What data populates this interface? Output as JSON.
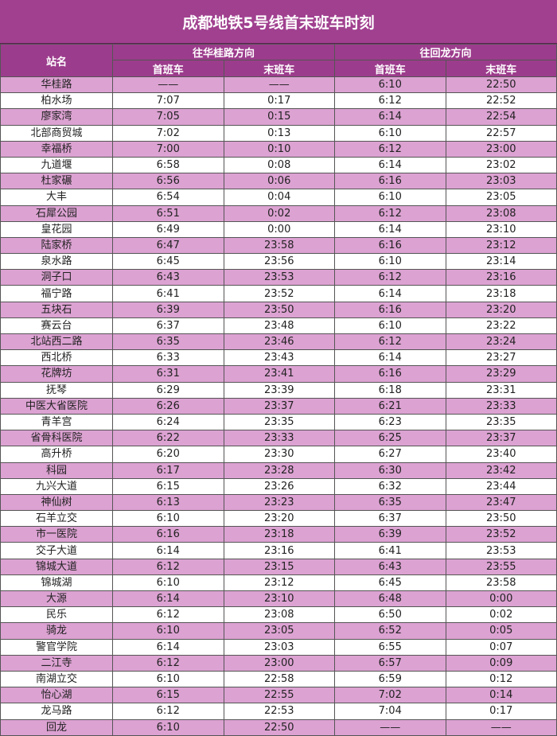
{
  "title": "成都地铁5号线首末班车时刻",
  "headers": {
    "station": "站名",
    "dir1": "往华桂路方向",
    "dir2": "往回龙方向",
    "first": "首班车",
    "last": "末班车"
  },
  "colors": {
    "title_bg": "#a0408f",
    "header_bg": "#9c3c8c",
    "row_pink": "#dca2d2",
    "row_white": "#ffffff"
  },
  "rows": [
    [
      "华桂路",
      "——",
      "——",
      "6:10",
      "22:50"
    ],
    [
      "柏水场",
      "7:07",
      "0:17",
      "6:12",
      "22:52"
    ],
    [
      "廖家湾",
      "7:05",
      "0:15",
      "6:14",
      "22:54"
    ],
    [
      "北部商贸城",
      "7:02",
      "0:13",
      "6:10",
      "22:57"
    ],
    [
      "幸福桥",
      "7:00",
      "0:10",
      "6:12",
      "23:00"
    ],
    [
      "九道堰",
      "6:58",
      "0:08",
      "6:14",
      "23:02"
    ],
    [
      "杜家碾",
      "6:56",
      "0:06",
      "6:16",
      "23:03"
    ],
    [
      "大丰",
      "6:54",
      "0:04",
      "6:10",
      "23:05"
    ],
    [
      "石犀公园",
      "6:51",
      "0:02",
      "6:12",
      "23:08"
    ],
    [
      "皇花园",
      "6:49",
      "0:00",
      "6:14",
      "23:10"
    ],
    [
      "陆家桥",
      "6:47",
      "23:58",
      "6:16",
      "23:12"
    ],
    [
      "泉水路",
      "6:45",
      "23:56",
      "6:10",
      "23:14"
    ],
    [
      "洞子口",
      "6:43",
      "23:53",
      "6:12",
      "23:16"
    ],
    [
      "福宁路",
      "6:41",
      "23:52",
      "6:14",
      "23:18"
    ],
    [
      "五块石",
      "6:39",
      "23:50",
      "6:16",
      "23:20"
    ],
    [
      "赛云台",
      "6:37",
      "23:48",
      "6:10",
      "23:22"
    ],
    [
      "北站西二路",
      "6:35",
      "23:46",
      "6:12",
      "23:24"
    ],
    [
      "西北桥",
      "6:33",
      "23:43",
      "6:14",
      "23:27"
    ],
    [
      "花牌坊",
      "6:31",
      "23:41",
      "6:16",
      "23:29"
    ],
    [
      "抚琴",
      "6:29",
      "23:39",
      "6:18",
      "23:31"
    ],
    [
      "中医大省医院",
      "6:26",
      "23:37",
      "6:21",
      "23:33"
    ],
    [
      "青羊宫",
      "6:24",
      "23:35",
      "6:23",
      "23:35"
    ],
    [
      "省骨科医院",
      "6:22",
      "23:33",
      "6:25",
      "23:37"
    ],
    [
      "高升桥",
      "6:20",
      "23:30",
      "6:27",
      "23:40"
    ],
    [
      "科园",
      "6:17",
      "23:28",
      "6:30",
      "23:42"
    ],
    [
      "九兴大道",
      "6:15",
      "23:26",
      "6:32",
      "23:44"
    ],
    [
      "神仙树",
      "6:13",
      "23:23",
      "6:35",
      "23:47"
    ],
    [
      "石羊立交",
      "6:10",
      "23:20",
      "6:37",
      "23:50"
    ],
    [
      "市一医院",
      "6:16",
      "23:18",
      "6:39",
      "23:52"
    ],
    [
      "交子大道",
      "6:14",
      "23:16",
      "6:41",
      "23:53"
    ],
    [
      "锦城大道",
      "6:12",
      "23:15",
      "6:43",
      "23:55"
    ],
    [
      "锦城湖",
      "6:10",
      "23:12",
      "6:45",
      "23:58"
    ],
    [
      "大源",
      "6:14",
      "23:10",
      "6:48",
      "0:00"
    ],
    [
      "民乐",
      "6:12",
      "23:08",
      "6:50",
      "0:02"
    ],
    [
      "骑龙",
      "6:10",
      "23:05",
      "6:52",
      "0:05"
    ],
    [
      "警官学院",
      "6:14",
      "23:03",
      "6:55",
      "0:07"
    ],
    [
      "二江寺",
      "6:12",
      "23:00",
      "6:57",
      "0:09"
    ],
    [
      "南湖立交",
      "6:10",
      "22:58",
      "6:59",
      "0:12"
    ],
    [
      "怡心湖",
      "6:15",
      "22:55",
      "7:02",
      "0:14"
    ],
    [
      "龙马路",
      "6:12",
      "22:53",
      "7:04",
      "0:17"
    ],
    [
      "回龙",
      "6:10",
      "22:50",
      "——",
      "——"
    ]
  ]
}
